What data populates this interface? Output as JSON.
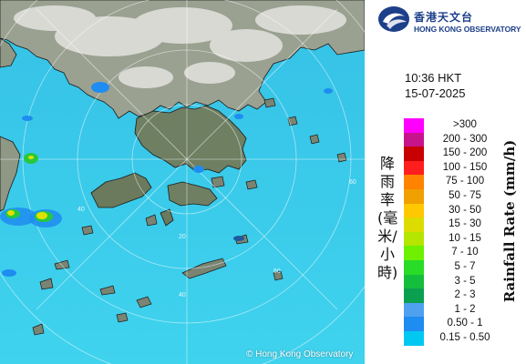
{
  "map": {
    "ring_labels": [
      "60",
      "60",
      "40",
      "40",
      "20"
    ],
    "copyright": "© Hong Kong Observatory"
  },
  "header": {
    "logo_cn": "香港天文台",
    "logo_en": "HONG KONG OBSERVATORY",
    "time": "10:36 HKT",
    "date": "15-07-2025"
  },
  "legend": {
    "title_cn": "降雨率(毫米/小時)",
    "title_en": "Rainfall Rate (mm/h)",
    "levels": [
      {
        "label": ">300",
        "color": "#ff00ff"
      },
      {
        "label": "200 - 300",
        "color": "#c8148c"
      },
      {
        "label": "150 - 200",
        "color": "#c80000"
      },
      {
        "label": "100 - 150",
        "color": "#ff1e1e"
      },
      {
        "label": "75 - 100",
        "color": "#ff8200"
      },
      {
        "label": "50 - 75",
        "color": "#f0a000"
      },
      {
        "label": "30 - 50",
        "color": "#ffc800"
      },
      {
        "label": "15 - 30",
        "color": "#dcdc00"
      },
      {
        "label": "10 - 15",
        "color": "#b4e600"
      },
      {
        "label": "7 - 10",
        "color": "#6ef000"
      },
      {
        "label": "5 - 7",
        "color": "#28dc28"
      },
      {
        "label": "3 - 5",
        "color": "#14be3c"
      },
      {
        "label": "2 - 3",
        "color": "#0aa050"
      },
      {
        "label": "1 - 2",
        "color": "#50a0f0"
      },
      {
        "label": "0.50 - 1",
        "color": "#1e8cf0"
      },
      {
        "label": "0.15 - 0.50",
        "color": "#00c8f0"
      }
    ]
  }
}
